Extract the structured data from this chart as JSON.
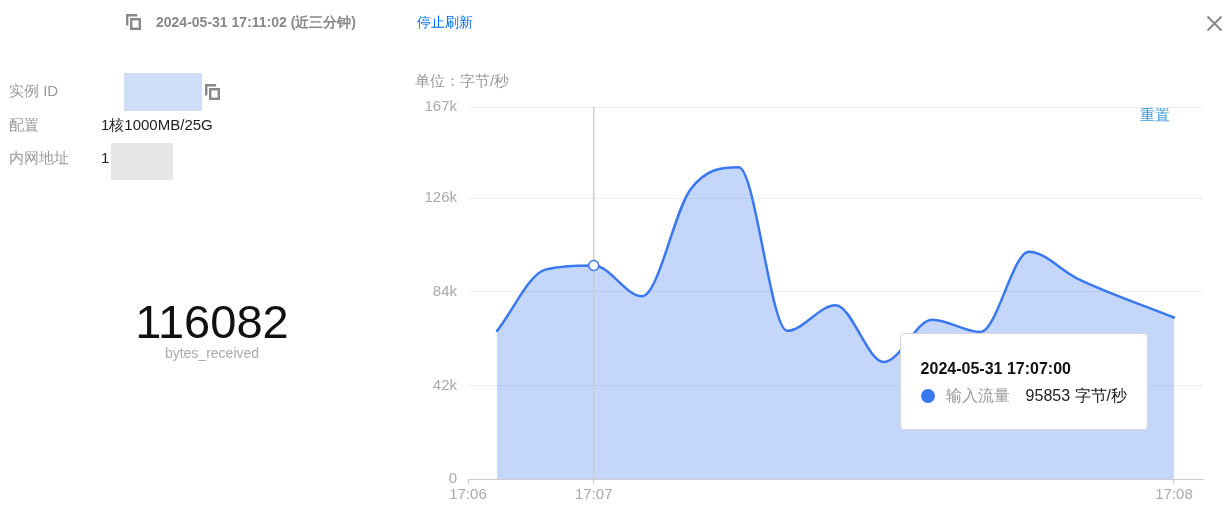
{
  "chart_data": [
    {
      "type": "other",
      "title": "2024-05-31 17:11:02 (近三分钟)",
      "annotations": [
        "停止刷新",
        "实例 ID",
        "配置",
        "1核1000MB/25G",
        "内网地址",
        "1",
        "116082",
        "bytes_received"
      ]
    },
    {
      "type": "area",
      "ylabel": "单位：字节/秒",
      "x": [
        "2024-05-31T17:06:50",
        "2024-05-31T17:06:55",
        "2024-05-31T17:07:00",
        "2024-05-31T17:07:05",
        "2024-05-31T17:07:10",
        "2024-05-31T17:07:15",
        "2024-05-31T17:07:20",
        "2024-05-31T17:07:25",
        "2024-05-31T17:07:30",
        "2024-05-31T17:07:35",
        "2024-05-31T17:07:40",
        "2024-05-31T17:07:45",
        "2024-05-31T17:07:50",
        "2024-05-31T17:07:55",
        "2024-05-31T17:08:00"
      ],
      "series": [
        {
          "name": "输入流量",
          "color": "#3a78f0",
          "values": [
            66500,
            94000,
            95853,
            82000,
            130000,
            140000,
            66500,
            78000,
            52500,
            71500,
            66000,
            102000,
            90000,
            null,
            72500
          ]
        }
      ],
      "xlim": [
        "2024-05-31T17:06:47",
        "2024-05-31T17:08:03"
      ],
      "xticks": [
        {
          "value": "2024-05-31T17:06:47",
          "label": "17:06"
        },
        {
          "value": "2024-05-31T17:07:00",
          "label": "17:07"
        },
        {
          "value": "2024-05-31T17:08:00",
          "label": "17:08"
        }
      ],
      "ylim": [
        0,
        167000
      ],
      "yticks": [
        0,
        {
          "value": 42000,
          "label": "42k"
        },
        {
          "value": 84000,
          "label": "84k"
        },
        {
          "value": 126000,
          "label": "126k"
        },
        {
          "value": 167000,
          "label": "167k"
        }
      ],
      "grid": "y",
      "marker": "none",
      "legend": "bottom right",
      "ref_lines": [
        {
          "axis": "x",
          "value": "2024-05-31T17:07:00",
          "color": "#cccccc"
        }
      ],
      "annotations": [
        "重置",
        "2024-05-31 17:07:00",
        "95853 字节/秒"
      ]
    }
  ]
}
